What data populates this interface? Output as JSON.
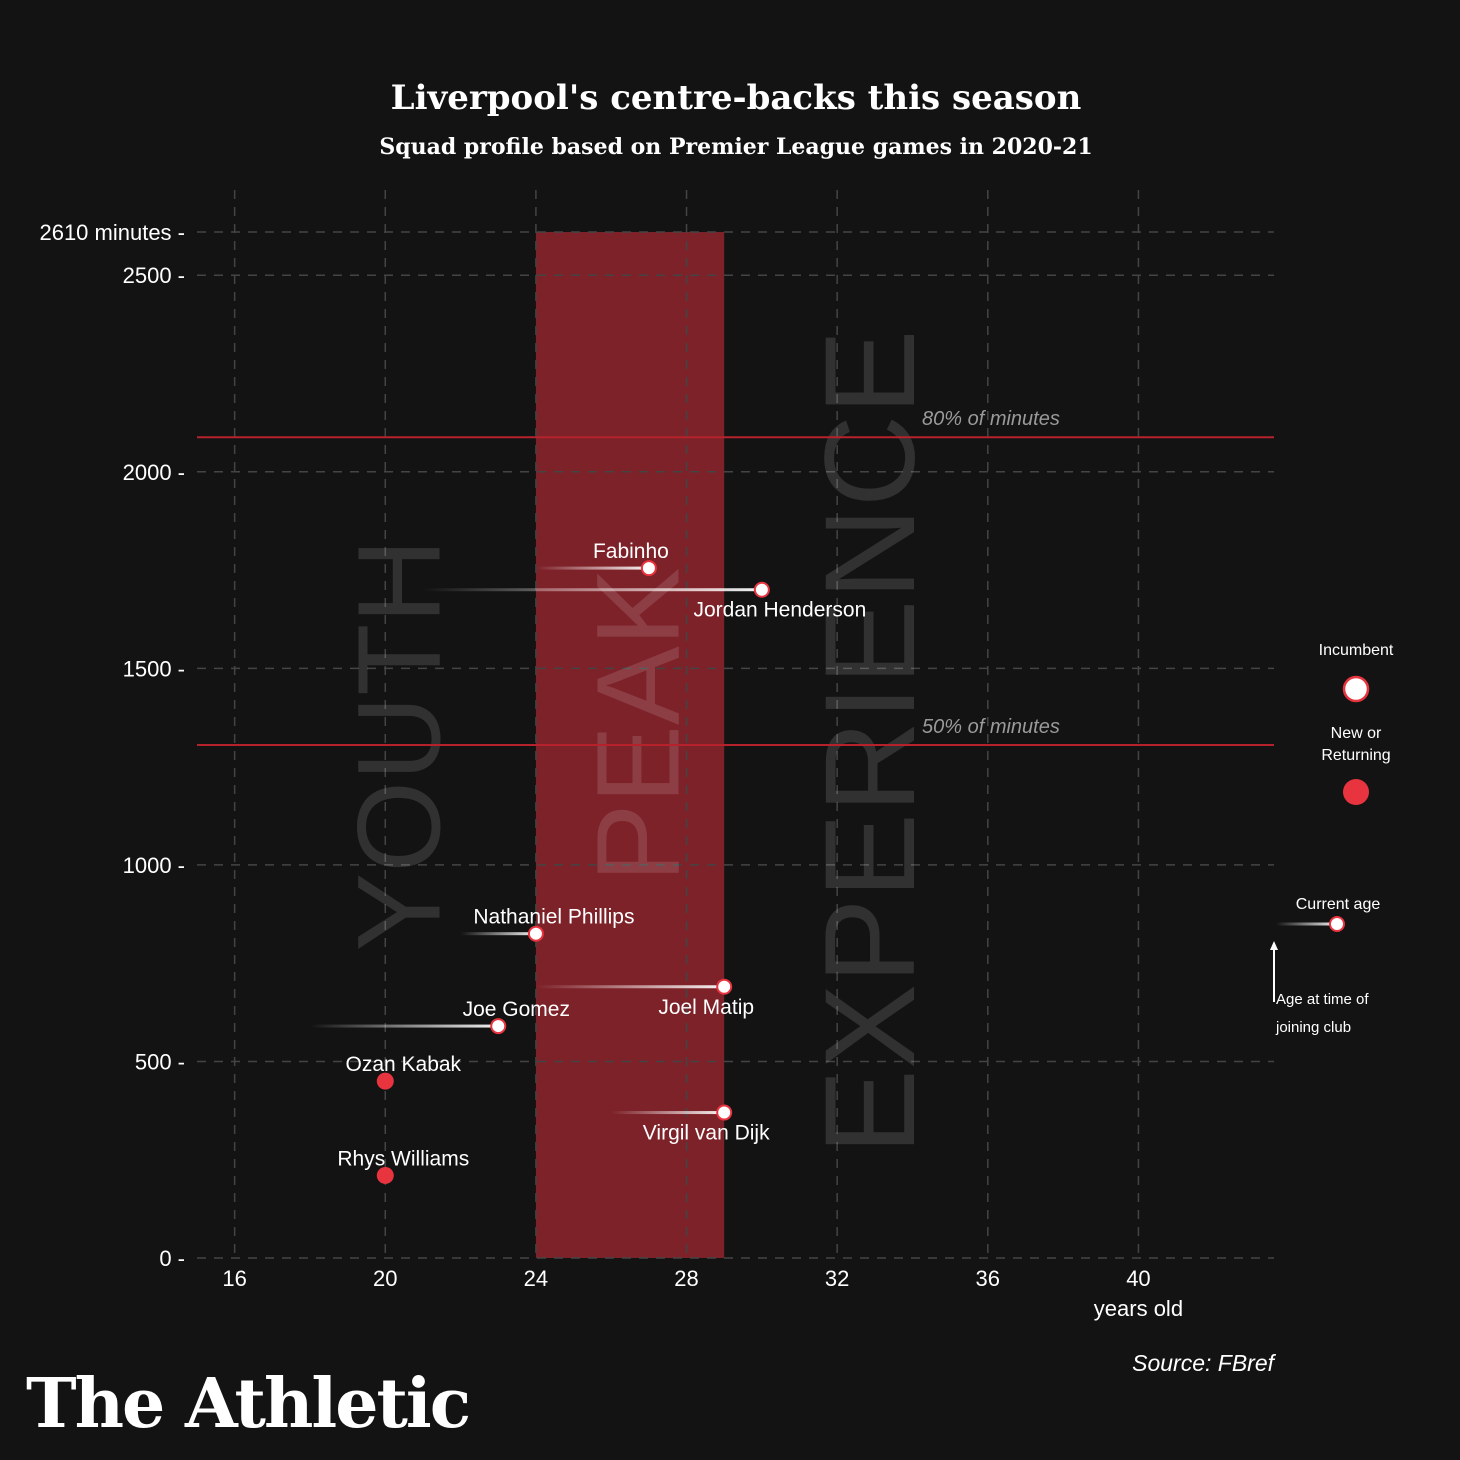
{
  "header": {
    "title": "Liverpool's centre-backs this season",
    "subtitle": "Squad profile based on Premier League games in 2020-21"
  },
  "chart_data": {
    "type": "scatter",
    "title": "Liverpool's centre-backs this season",
    "subtitle": "Squad profile based on Premier League games in 2020-21",
    "xlabel": "years old",
    "ylabel": "",
    "xlim": [
      15,
      43.6
    ],
    "ylim": [
      0,
      2610
    ],
    "x_ticks": [
      16,
      20,
      24,
      28,
      32,
      36,
      40
    ],
    "y_ticks": [
      0,
      500,
      1000,
      1500,
      2000,
      2500
    ],
    "y_top_label": "2610 minutes",
    "y_top_value": 2610,
    "grid": true,
    "zones": [
      {
        "label": "YOUTH",
        "start_age": 15,
        "end_age": 24
      },
      {
        "label": "PEAK",
        "start_age": 24,
        "end_age": 29
      },
      {
        "label": "EXPERIENCE",
        "start_age": 29,
        "end_age": 43.6
      }
    ],
    "reference_lines": [
      {
        "label": "80% of minutes",
        "value": 2088
      },
      {
        "label": "50% of minutes",
        "value": 1305
      }
    ],
    "players": [
      {
        "name": "Fabinho",
        "age": 27,
        "age_joined": 24,
        "minutes": 1755,
        "status": "incumbent",
        "label_pos": "above"
      },
      {
        "name": "Jordan Henderson",
        "age": 30,
        "age_joined": 21,
        "minutes": 1700,
        "status": "incumbent",
        "label_pos": "below"
      },
      {
        "name": "Nathaniel Phillips",
        "age": 24,
        "age_joined": 22,
        "minutes": 825,
        "status": "incumbent",
        "label_pos": "above"
      },
      {
        "name": "Joel Matip",
        "age": 29,
        "age_joined": 24,
        "minutes": 690,
        "status": "incumbent",
        "label_pos": "below"
      },
      {
        "name": "Joe Gomez",
        "age": 23,
        "age_joined": 18,
        "minutes": 590,
        "status": "incumbent",
        "label_pos": "above"
      },
      {
        "name": "Ozan Kabak",
        "age": 20,
        "age_joined": 20,
        "minutes": 450,
        "status": "new",
        "label_pos": "above"
      },
      {
        "name": "Virgil van Dijk",
        "age": 29,
        "age_joined": 26,
        "minutes": 370,
        "status": "incumbent",
        "label_pos": "below"
      },
      {
        "name": "Rhys Williams",
        "age": 20,
        "age_joined": 20,
        "minutes": 210,
        "status": "new",
        "label_pos": "above"
      }
    ],
    "legend": {
      "incumbent": "Incumbent",
      "new": "New or Returning",
      "current_age": "Current age",
      "age_joined": "Age at time of joining club"
    }
  },
  "colors": {
    "background": "#131313",
    "peak_zone": "#7d2229",
    "reference_line": "#b5222c",
    "new_dot": "#e8343f",
    "incumbent_dot": "#ffffff",
    "grid": "#444444",
    "zone_text": "#ffffff"
  },
  "footer": {
    "source": "Source: FBref",
    "brand": "The Athletic"
  }
}
